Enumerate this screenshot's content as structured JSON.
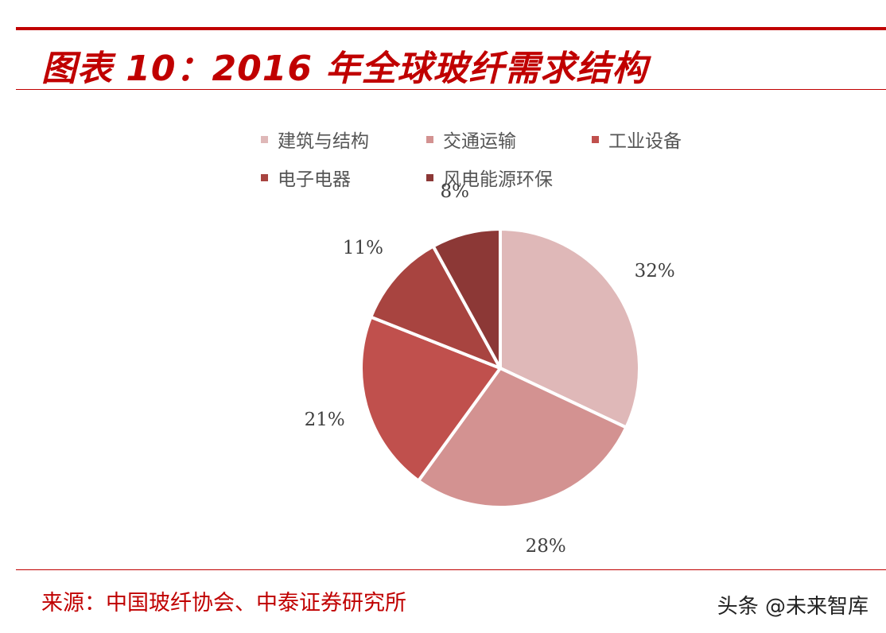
{
  "title": "图表 10：2016 年全球玻纤需求结构",
  "source": "来源：中国玻纤协会、中泰证券研究所",
  "watermark": "头条 @未来智库",
  "chart_data": {
    "type": "pie",
    "start_angle_deg": 0,
    "direction": "clockwise",
    "legend_position": "top",
    "slices": [
      {
        "name": "建筑与结构",
        "value": 32,
        "label": "32%",
        "color": "#dfb8b8"
      },
      {
        "name": "交通运输",
        "value": 28,
        "label": "28%",
        "color": "#d39291"
      },
      {
        "name": "工业设备",
        "value": 21,
        "label": "21%",
        "color": "#c0504d"
      },
      {
        "name": "电子电器",
        "value": 11,
        "label": "11%",
        "color": "#a84440"
      },
      {
        "name": "风电能源环保",
        "value": 8,
        "label": "8%",
        "color": "#8c3836"
      }
    ]
  }
}
